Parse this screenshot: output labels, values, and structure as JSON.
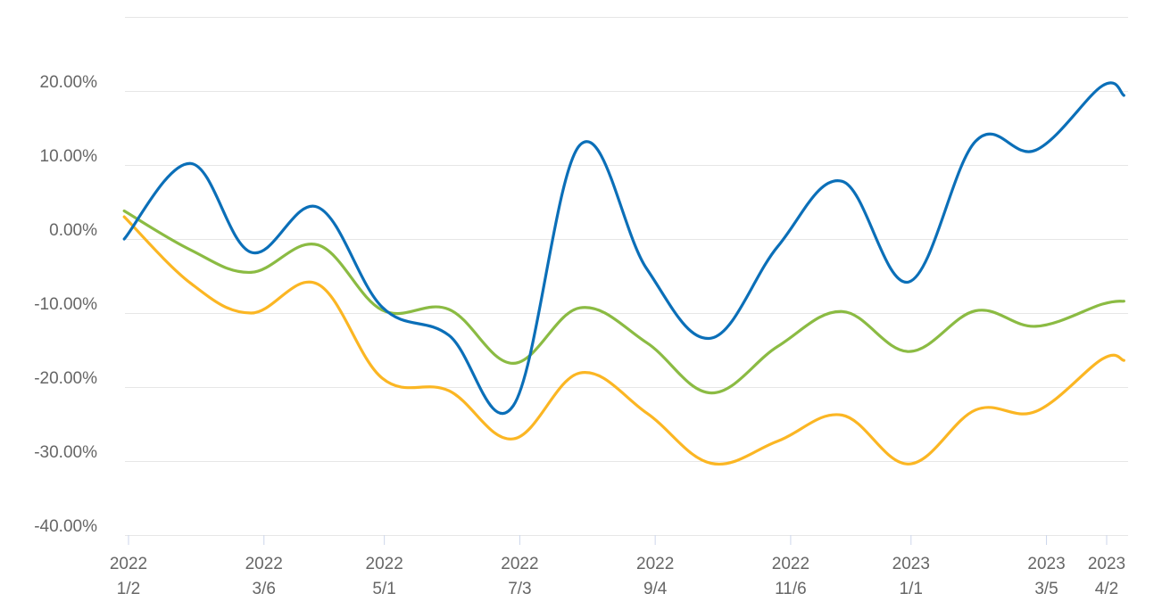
{
  "chart_data": {
    "type": "line",
    "title": "",
    "xlabel": "",
    "ylabel": "",
    "ylim": [
      -40,
      30
    ],
    "grid": true,
    "legend": "none",
    "y_ticks": [
      {
        "value": 20,
        "label": "20.00%"
      },
      {
        "value": 10,
        "label": "10.00%"
      },
      {
        "value": 0,
        "label": "0.00%"
      },
      {
        "value": -10,
        "label": "-10.00%"
      },
      {
        "value": -20,
        "label": "-20.00%"
      },
      {
        "value": -30,
        "label": "-30.00%"
      },
      {
        "value": -40,
        "label": "-40.00%"
      }
    ],
    "x_ticks": [
      {
        "date": "2022-01-02",
        "year": "2022",
        "day": "1/2"
      },
      {
        "date": "2022-03-06",
        "year": "2022",
        "day": "3/6"
      },
      {
        "date": "2022-05-01",
        "year": "2022",
        "day": "5/1"
      },
      {
        "date": "2022-07-03",
        "year": "2022",
        "day": "7/3"
      },
      {
        "date": "2022-09-04",
        "year": "2022",
        "day": "9/4"
      },
      {
        "date": "2022-11-06",
        "year": "2022",
        "day": "11/6"
      },
      {
        "date": "2023-01-01",
        "year": "2023",
        "day": "1/1"
      },
      {
        "date": "2023-03-05",
        "year": "2023",
        "day": "3/5"
      },
      {
        "date": "2023-04-02",
        "year": "2023",
        "day": "4/2"
      }
    ],
    "x": [
      "2021-12-31",
      "2022-01-31",
      "2022-02-28",
      "2022-03-31",
      "2022-04-30",
      "2022-05-31",
      "2022-06-30",
      "2022-07-31",
      "2022-08-31",
      "2022-09-30",
      "2022-10-31",
      "2022-11-30",
      "2022-12-31",
      "2023-01-31",
      "2023-02-28",
      "2023-03-31",
      "2023-04-10"
    ],
    "series": [
      {
        "color": "#0b6fb8",
        "values": [
          0,
          10.2,
          -1.8,
          4.3,
          -9.2,
          -13,
          -22.5,
          12.7,
          -4,
          -13.4,
          -1,
          7.8,
          -5.8,
          13.2,
          12,
          20.7,
          19.4
        ]
      },
      {
        "color": "#8bbb43",
        "values": [
          3.8,
          -1.5,
          -4.5,
          -0.8,
          -9.6,
          -9.5,
          -16.8,
          -9.3,
          -14,
          -20.8,
          -14.5,
          -9.8,
          -15.2,
          -9.7,
          -11.8,
          -8.8,
          -8.4
        ]
      },
      {
        "color": "#fbb623",
        "values": [
          3,
          -6,
          -10,
          -6.1,
          -18.8,
          -20.5,
          -27,
          -18.1,
          -23.5,
          -30.3,
          -27.3,
          -23.8,
          -30.4,
          -23.1,
          -23.3,
          -16.2,
          -16.4
        ]
      }
    ]
  }
}
